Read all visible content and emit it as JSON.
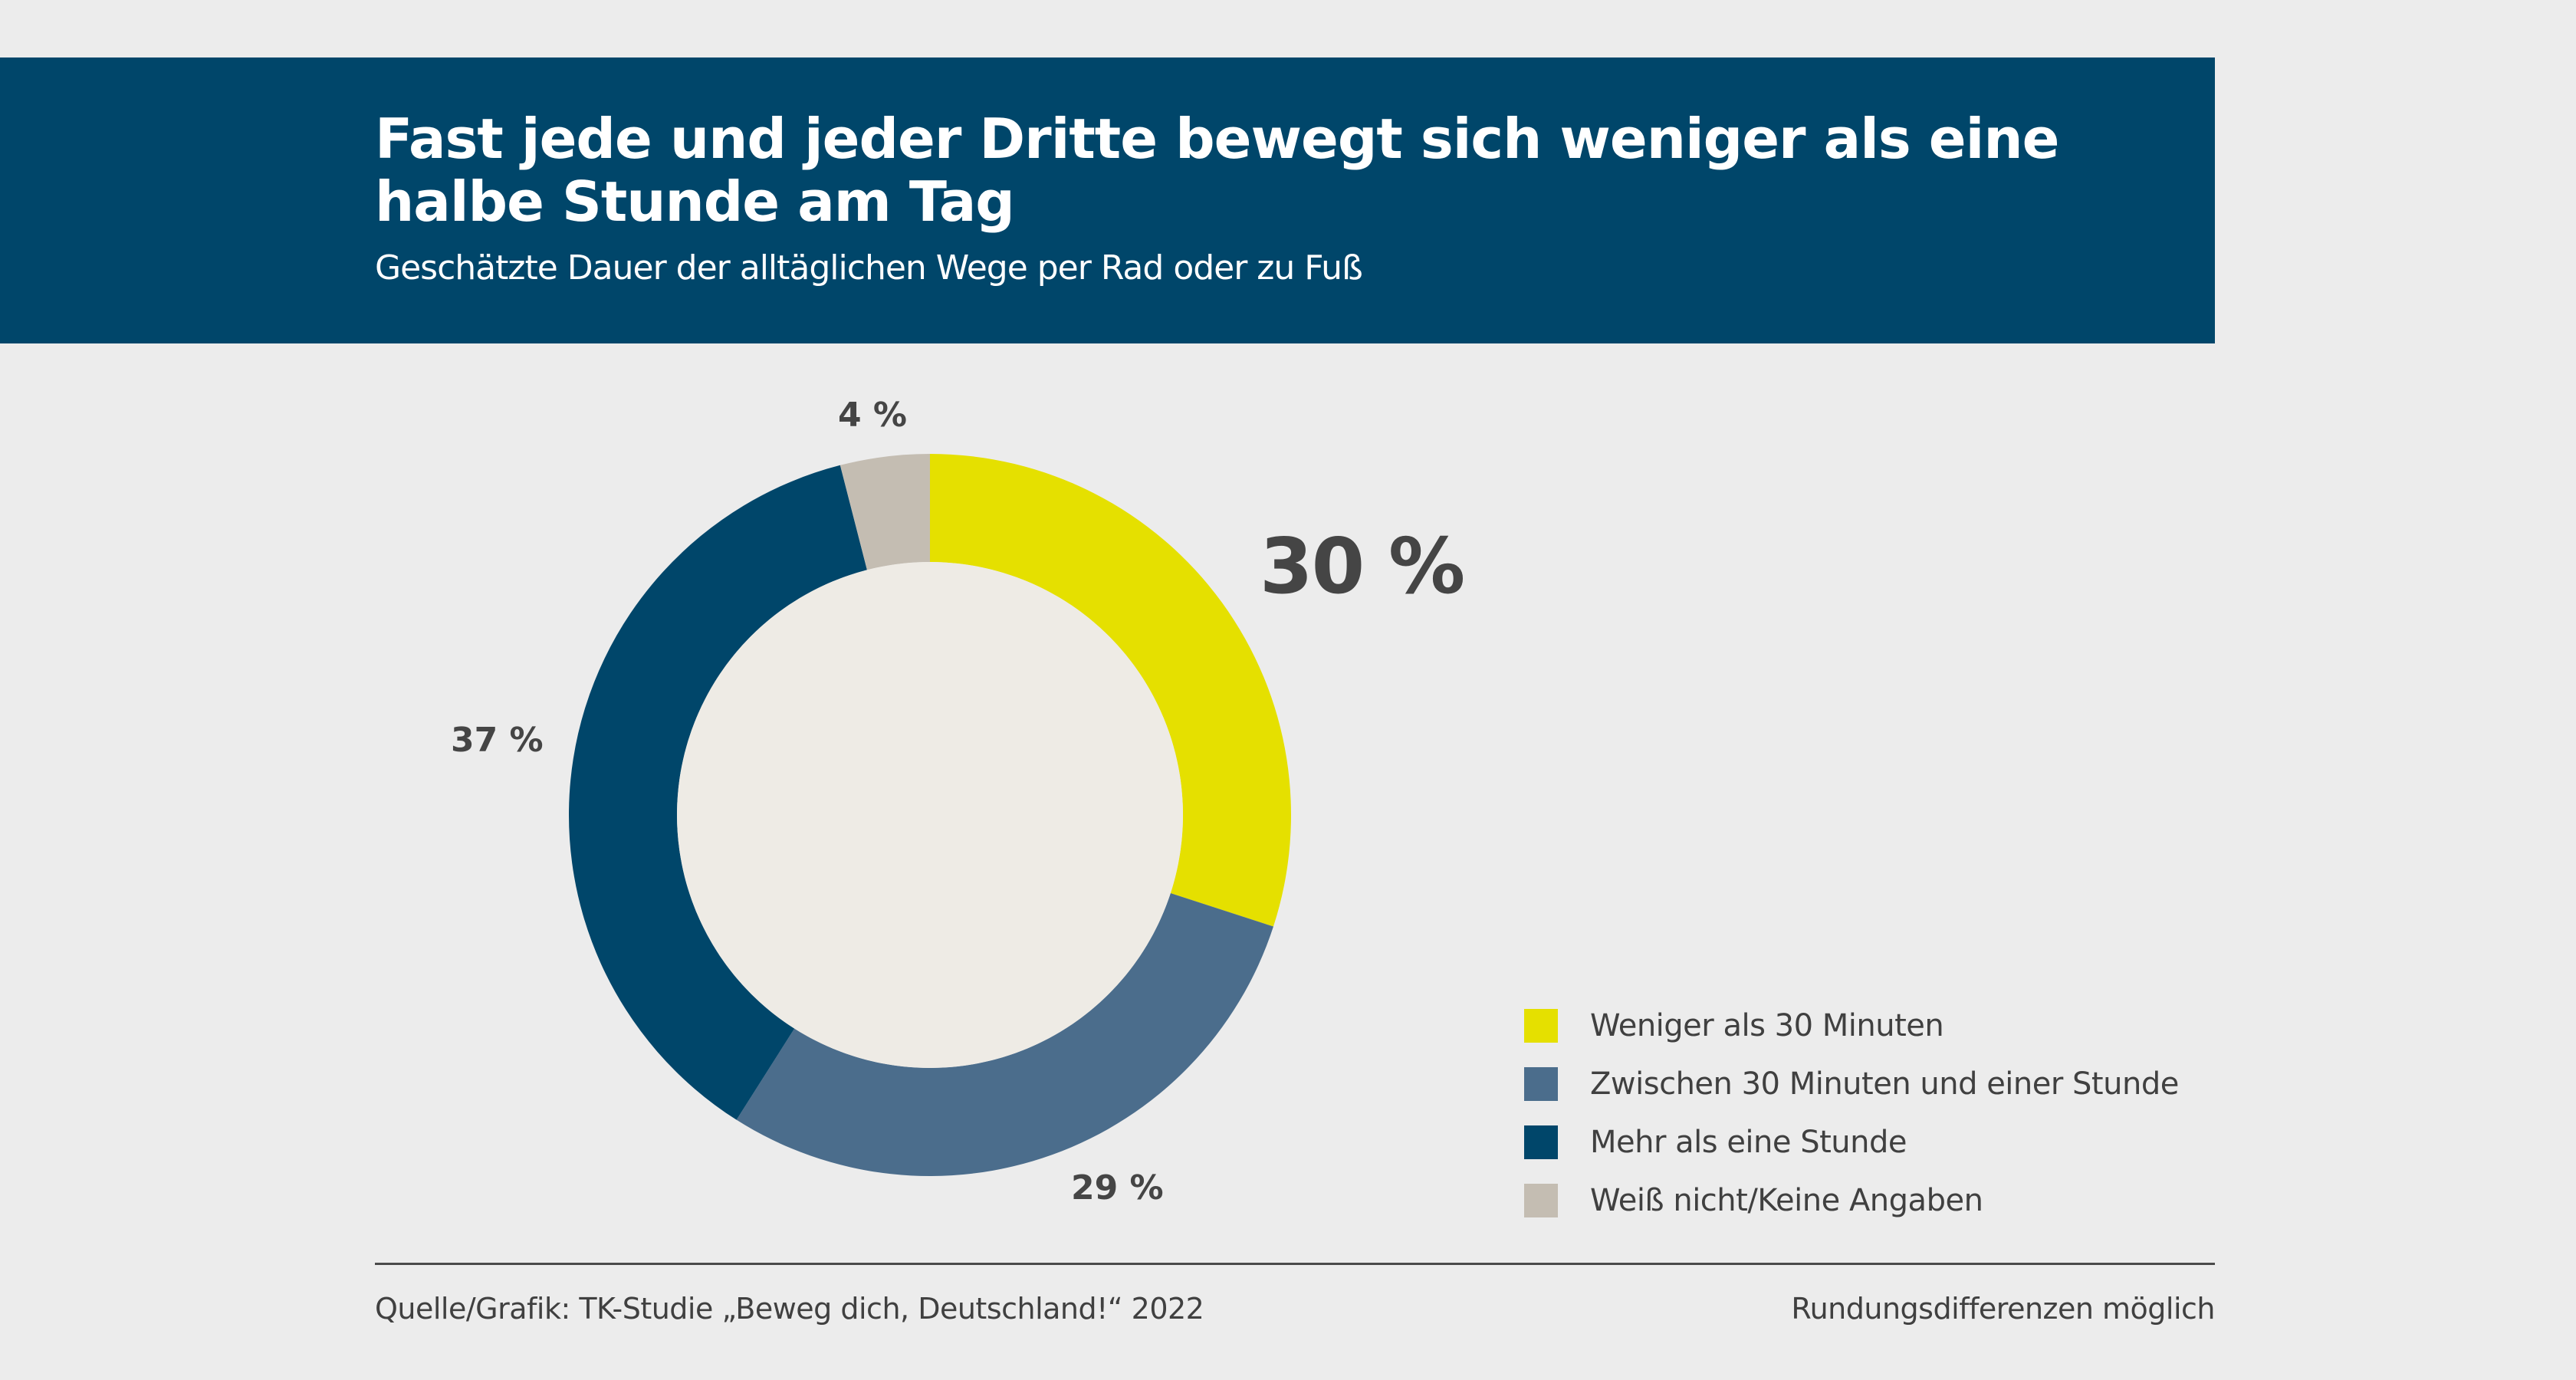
{
  "header": {
    "title": "Fast jede und jeder Dritte bewegt sich weniger als eine halbe Stunde am Tag",
    "subtitle": "Geschätzte Dauer der alltäglichen Wege per Rad oder zu Fuß"
  },
  "chart_data": {
    "type": "pie",
    "variant": "donut",
    "title": "Fast jede und jeder Dritte bewegt sich weniger als eine halbe Stunde am Tag",
    "subtitle": "Geschätzte Dauer der alltäglichen Wege per Rad oder zu Fuß",
    "categories": [
      "Weniger als 30 Minuten",
      "Zwischen 30 Minuten und einer Stunde",
      "Mehr als eine Stunde",
      "Weiß nicht/Keine Angaben"
    ],
    "values": [
      30,
      29,
      37,
      4
    ],
    "unit": "%",
    "data_labels": [
      "30 %",
      "29 %",
      "37 %",
      "4 %"
    ],
    "colors": [
      "#E5E000",
      "#4B6D8C",
      "#00466A",
      "#C4BDB2"
    ],
    "center_color": "#EEEBE5",
    "start": "top",
    "direction": "clockwise",
    "highlighted_index": 0,
    "legend_position": "bottom-right"
  },
  "legend": {
    "items": [
      {
        "label": "Weniger als 30 Minuten",
        "color": "#E5E000"
      },
      {
        "label": "Zwischen 30 Minuten und einer Stunde",
        "color": "#4B6D8C"
      },
      {
        "label": "Mehr als eine Stunde",
        "color": "#00466A"
      },
      {
        "label": "Weiß nicht/Keine Angaben",
        "color": "#C4BDB2"
      }
    ]
  },
  "footer": {
    "source": "Quelle/Grafik: TK-Studie „Beweg dich, Deutschland!“ 2022",
    "note": "Rundungsdifferenzen möglich"
  }
}
